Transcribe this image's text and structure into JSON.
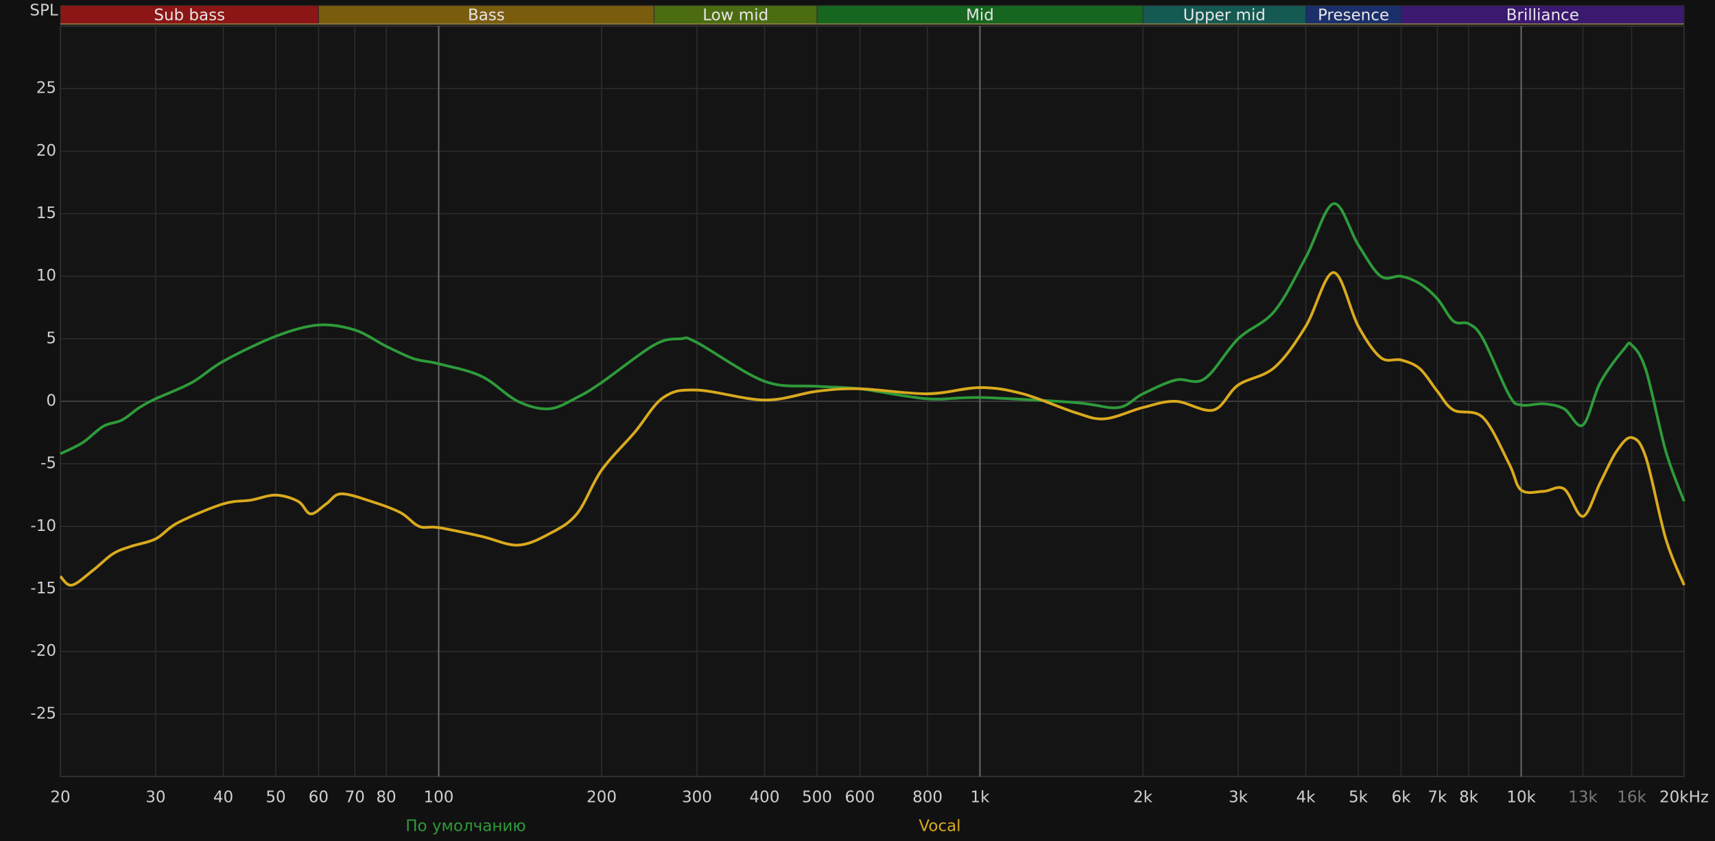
{
  "chart_data": {
    "type": "line",
    "y_label": "SPL",
    "log_x": true,
    "grid": true,
    "xlim": [
      20,
      20000
    ],
    "ylim": [
      -30,
      30
    ],
    "yticks": [
      -25,
      -20,
      -15,
      -10,
      -5,
      0,
      5,
      10,
      15,
      20,
      25
    ],
    "xticks": [
      20,
      30,
      40,
      50,
      60,
      70,
      80,
      100,
      200,
      300,
      400,
      500,
      600,
      800,
      {
        "value": 1000,
        "label": "1k"
      },
      {
        "value": 2000,
        "label": "2k"
      },
      {
        "value": 3000,
        "label": "3k"
      },
      {
        "value": 4000,
        "label": "4k"
      },
      {
        "value": 5000,
        "label": "5k"
      },
      {
        "value": 6000,
        "label": "6k"
      },
      {
        "value": 7000,
        "label": "7k"
      },
      {
        "value": 8000,
        "label": "8k"
      },
      {
        "value": 10000,
        "label": "10k"
      },
      {
        "value": 13000,
        "label": "13k",
        "color": "#7a7a7a"
      },
      {
        "value": 16000,
        "label": "16k",
        "color": "#7a7a7a"
      },
      {
        "value": 20000,
        "label": "20kHz"
      }
    ],
    "bands": [
      {
        "name": "Sub bass",
        "from": 20,
        "to": 60,
        "color": "#8c1515"
      },
      {
        "name": "Bass",
        "from": 60,
        "to": 250,
        "color": "#7a5c0e"
      },
      {
        "name": "Low mid",
        "from": 250,
        "to": 500,
        "color": "#4c6c12"
      },
      {
        "name": "Mid",
        "from": 500,
        "to": 2000,
        "color": "#16661f"
      },
      {
        "name": "Upper mid",
        "from": 2000,
        "to": 4000,
        "color": "#155a52"
      },
      {
        "name": "Presence",
        "from": 4000,
        "to": 6000,
        "color": "#1b2f6a"
      },
      {
        "name": "Brilliance",
        "from": 6000,
        "to": 20000,
        "color": "#3a196f"
      }
    ],
    "series": [
      {
        "name": "По умолчанию",
        "color": "#2e9a3a",
        "x": [
          20,
          22,
          24,
          26,
          28,
          30,
          35,
          40,
          50,
          60,
          70,
          80,
          90,
          100,
          120,
          140,
          160,
          180,
          200,
          250,
          280,
          300,
          400,
          500,
          600,
          800,
          1000,
          1500,
          1800,
          2000,
          2300,
          2600,
          3000,
          3500,
          4000,
          4500,
          5000,
          5500,
          6000,
          6500,
          7000,
          7500,
          8000,
          8500,
          9500,
          10000,
          11000,
          12000,
          13000,
          14000,
          15500,
          16000,
          17000,
          18500,
          20000
        ],
        "values": [
          -4.2,
          -3.3,
          -2.0,
          -1.5,
          -0.5,
          0.2,
          1.5,
          3.2,
          5.2,
          6.1,
          5.7,
          4.4,
          3.4,
          3.0,
          2.0,
          0.0,
          -0.6,
          0.3,
          1.5,
          4.5,
          5.0,
          4.7,
          1.6,
          1.2,
          1.0,
          0.2,
          0.3,
          -0.1,
          -0.5,
          0.6,
          1.7,
          1.8,
          5.0,
          7.2,
          11.5,
          15.8,
          12.5,
          10.0,
          10.0,
          9.4,
          8.2,
          6.4,
          6.2,
          5.0,
          0.5,
          -0.3,
          -0.2,
          -0.6,
          -1.9,
          1.5,
          4.2,
          4.5,
          2.5,
          -4.0,
          -8.0
        ]
      },
      {
        "name": "Vocal",
        "color": "#d9aa1e",
        "x": [
          20,
          21,
          23,
          25,
          27,
          30,
          33,
          40,
          45,
          50,
          55,
          58,
          62,
          66,
          75,
          85,
          92,
          100,
          120,
          140,
          160,
          180,
          200,
          230,
          260,
          300,
          400,
          500,
          600,
          800,
          1000,
          1200,
          1500,
          1700,
          2000,
          2300,
          2700,
          3000,
          3500,
          4000,
          4500,
          5000,
          5500,
          6000,
          6500,
          7000,
          7500,
          8500,
          9500,
          10000,
          11000,
          12000,
          13000,
          14000,
          15000,
          16000,
          17000,
          18500,
          20000
        ],
        "values": [
          -14.0,
          -14.7,
          -13.5,
          -12.2,
          -11.6,
          -11.0,
          -9.7,
          -8.2,
          -7.9,
          -7.5,
          -8.0,
          -9.0,
          -8.2,
          -7.4,
          -8.0,
          -8.9,
          -10.0,
          -10.1,
          -10.8,
          -11.5,
          -10.6,
          -9.0,
          -5.5,
          -2.5,
          0.3,
          0.9,
          0.1,
          0.8,
          1.0,
          0.6,
          1.1,
          0.6,
          -0.9,
          -1.4,
          -0.5,
          0.0,
          -0.7,
          1.3,
          2.7,
          6.0,
          10.3,
          6.0,
          3.5,
          3.3,
          2.6,
          0.8,
          -0.7,
          -1.3,
          -5.0,
          -7.1,
          -7.2,
          -7.0,
          -9.2,
          -6.5,
          -4.0,
          -2.9,
          -4.5,
          -11.0,
          -14.7
        ]
      }
    ]
  }
}
